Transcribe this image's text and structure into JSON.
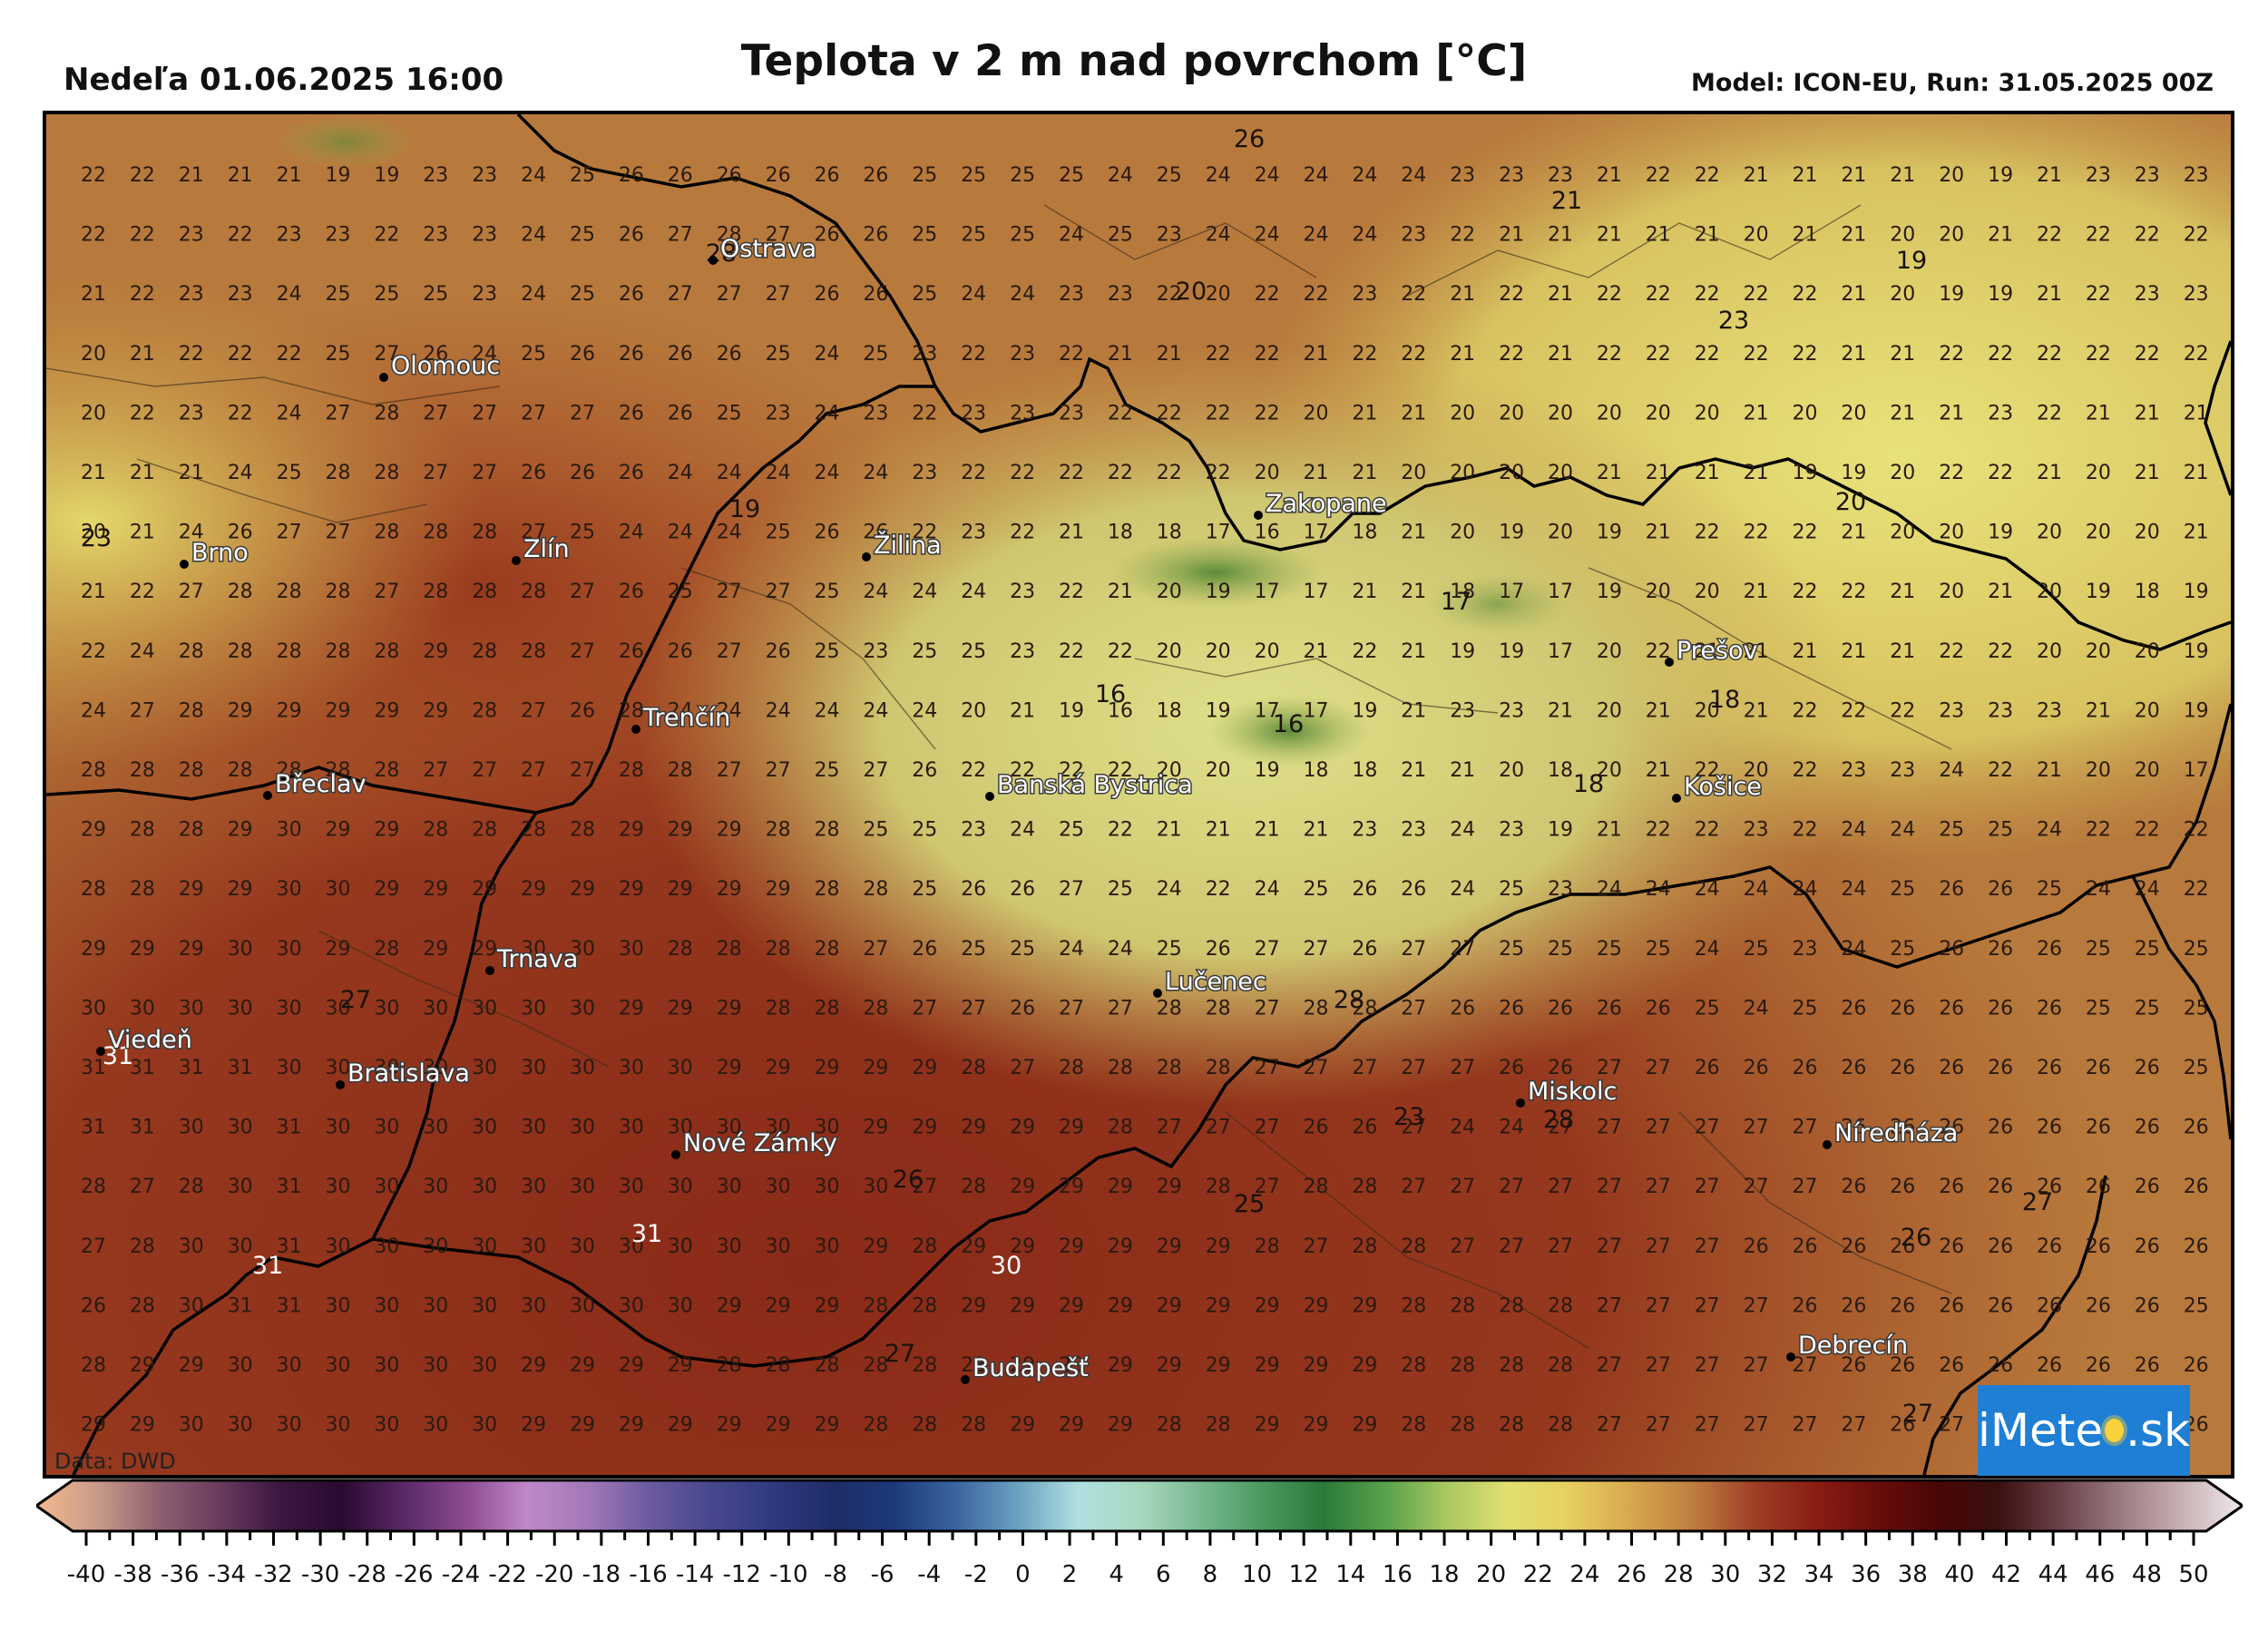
{
  "header": {
    "date": "Nedeľa 01.06.2025 16:00",
    "title": "Teplota v 2 m nad povrchom [°C]",
    "model": "Model: ICON-EU, Run: 31.05.2025 00Z"
  },
  "map": {
    "grid_cols": 45,
    "grid_rows": 22,
    "grid_values": [
      [
        22,
        22,
        21,
        21,
        21,
        19,
        19,
        23,
        23,
        24,
        25,
        26,
        26,
        26,
        26,
        26,
        26,
        25,
        25,
        25,
        25,
        24,
        25,
        24,
        24,
        24,
        24,
        24,
        23,
        23,
        23,
        21,
        22,
        22,
        21,
        21,
        21,
        21,
        20,
        19,
        21,
        23,
        23,
        23,
        23
      ],
      [
        22,
        22,
        23,
        22,
        23,
        23,
        22,
        23,
        23,
        24,
        25,
        26,
        27,
        28,
        27,
        26,
        26,
        25,
        25,
        25,
        24,
        25,
        23,
        24,
        24,
        24,
        24,
        23,
        22,
        21,
        21,
        21,
        21,
        21,
        20,
        21,
        21,
        20,
        20,
        21,
        22,
        22,
        22,
        22,
        22
      ],
      [
        21,
        22,
        23,
        23,
        24,
        25,
        25,
        25,
        23,
        24,
        25,
        26,
        27,
        27,
        27,
        26,
        26,
        25,
        24,
        24,
        23,
        23,
        22,
        20,
        22,
        22,
        23,
        22,
        21,
        22,
        21,
        22,
        22,
        22,
        22,
        22,
        21,
        20,
        19,
        19,
        21,
        22,
        23,
        23,
        22
      ],
      [
        20,
        21,
        22,
        22,
        22,
        25,
        27,
        26,
        24,
        25,
        26,
        26,
        26,
        26,
        25,
        24,
        25,
        23,
        22,
        23,
        22,
        21,
        21,
        22,
        22,
        21,
        22,
        22,
        21,
        22,
        21,
        22,
        22,
        22,
        22,
        22,
        21,
        21,
        22,
        22,
        22,
        22,
        22,
        22,
        22
      ],
      [
        20,
        22,
        23,
        22,
        24,
        27,
        28,
        27,
        27,
        27,
        27,
        26,
        26,
        25,
        23,
        24,
        23,
        22,
        23,
        23,
        23,
        22,
        22,
        22,
        22,
        20,
        21,
        21,
        20,
        20,
        20,
        20,
        20,
        20,
        21,
        20,
        20,
        21,
        21,
        23,
        22,
        21,
        21,
        21,
        21
      ],
      [
        21,
        21,
        21,
        24,
        25,
        28,
        28,
        27,
        27,
        26,
        26,
        26,
        24,
        24,
        24,
        24,
        24,
        23,
        22,
        22,
        22,
        22,
        22,
        22,
        20,
        21,
        21,
        20,
        20,
        20,
        20,
        21,
        21,
        21,
        21,
        19,
        19,
        20,
        22,
        22,
        21,
        20,
        21,
        21,
        21
      ],
      [
        20,
        21,
        24,
        26,
        27,
        27,
        28,
        28,
        28,
        27,
        25,
        24,
        24,
        24,
        25,
        26,
        26,
        22,
        23,
        22,
        21,
        18,
        18,
        17,
        16,
        17,
        18,
        21,
        20,
        19,
        20,
        19,
        21,
        22,
        22,
        22,
        21,
        20,
        20,
        19,
        20,
        20,
        20,
        21,
        20
      ],
      [
        21,
        22,
        27,
        28,
        28,
        28,
        27,
        28,
        28,
        28,
        27,
        26,
        25,
        27,
        27,
        25,
        24,
        24,
        24,
        23,
        22,
        21,
        20,
        19,
        17,
        17,
        21,
        21,
        18,
        17,
        17,
        19,
        20,
        20,
        21,
        22,
        22,
        21,
        20,
        21,
        20,
        19,
        18,
        19,
        20
      ],
      [
        22,
        24,
        28,
        28,
        28,
        28,
        28,
        29,
        28,
        28,
        27,
        26,
        26,
        27,
        26,
        25,
        23,
        25,
        25,
        23,
        22,
        22,
        20,
        20,
        20,
        21,
        22,
        21,
        19,
        19,
        17,
        20,
        22,
        21,
        21,
        21,
        21,
        21,
        22,
        22,
        20,
        20,
        20,
        19,
        19
      ],
      [
        24,
        27,
        28,
        29,
        29,
        29,
        29,
        29,
        28,
        27,
        26,
        28,
        24,
        24,
        24,
        24,
        24,
        24,
        20,
        21,
        19,
        16,
        18,
        19,
        17,
        17,
        19,
        21,
        23,
        23,
        21,
        20,
        21,
        20,
        21,
        22,
        22,
        22,
        23,
        23,
        23,
        21,
        20,
        19,
        19
      ],
      [
        28,
        28,
        28,
        28,
        28,
        28,
        28,
        27,
        27,
        27,
        27,
        28,
        28,
        27,
        27,
        25,
        27,
        26,
        22,
        22,
        22,
        22,
        20,
        20,
        19,
        18,
        18,
        21,
        21,
        20,
        18,
        20,
        21,
        22,
        20,
        22,
        23,
        23,
        24,
        22,
        21,
        20,
        20,
        17,
        17
      ],
      [
        29,
        28,
        28,
        29,
        30,
        29,
        29,
        28,
        28,
        28,
        28,
        29,
        29,
        29,
        28,
        28,
        25,
        25,
        23,
        24,
        25,
        22,
        21,
        21,
        21,
        21,
        23,
        23,
        24,
        23,
        19,
        21,
        22,
        22,
        23,
        22,
        24,
        24,
        25,
        25,
        24,
        22,
        22,
        22,
        21
      ],
      [
        28,
        28,
        29,
        29,
        30,
        30,
        29,
        29,
        29,
        29,
        29,
        29,
        29,
        29,
        29,
        28,
        28,
        25,
        26,
        26,
        27,
        25,
        24,
        22,
        24,
        25,
        26,
        26,
        24,
        25,
        23,
        24,
        24,
        24,
        24,
        24,
        24,
        25,
        26,
        26,
        25,
        24,
        24,
        22,
        21
      ],
      [
        29,
        29,
        29,
        30,
        30,
        29,
        28,
        29,
        29,
        30,
        30,
        30,
        28,
        28,
        28,
        28,
        27,
        26,
        25,
        25,
        24,
        24,
        25,
        26,
        27,
        27,
        26,
        27,
        27,
        25,
        25,
        25,
        25,
        24,
        25,
        23,
        24,
        25,
        26,
        26,
        26,
        25,
        25,
        25,
        22
      ],
      [
        30,
        30,
        30,
        30,
        30,
        30,
        30,
        30,
        30,
        30,
        30,
        29,
        29,
        29,
        28,
        28,
        28,
        27,
        27,
        26,
        27,
        27,
        28,
        28,
        27,
        28,
        28,
        27,
        26,
        26,
        26,
        26,
        26,
        25,
        24,
        25,
        26,
        26,
        26,
        26,
        26,
        25,
        25,
        25,
        25
      ],
      [
        31,
        31,
        31,
        31,
        30,
        30,
        30,
        30,
        30,
        30,
        30,
        30,
        30,
        29,
        29,
        29,
        29,
        29,
        28,
        27,
        28,
        28,
        28,
        28,
        27,
        27,
        27,
        27,
        27,
        26,
        26,
        27,
        27,
        26,
        26,
        26,
        26,
        26,
        26,
        26,
        26,
        26,
        26,
        25,
        25
      ],
      [
        31,
        31,
        30,
        30,
        31,
        30,
        30,
        30,
        30,
        30,
        30,
        30,
        30,
        30,
        30,
        30,
        29,
        29,
        29,
        29,
        29,
        28,
        27,
        27,
        27,
        26,
        26,
        27,
        24,
        24,
        27,
        27,
        27,
        27,
        27,
        27,
        26,
        26,
        26,
        26,
        26,
        26,
        26,
        26,
        25
      ],
      [
        28,
        27,
        28,
        30,
        31,
        30,
        30,
        30,
        30,
        30,
        30,
        30,
        30,
        30,
        30,
        30,
        30,
        27,
        28,
        29,
        29,
        29,
        29,
        28,
        27,
        28,
        28,
        27,
        27,
        27,
        27,
        27,
        27,
        27,
        27,
        27,
        26,
        26,
        26,
        26,
        26,
        26,
        26,
        26,
        25
      ],
      [
        27,
        28,
        30,
        30,
        31,
        30,
        30,
        30,
        30,
        30,
        30,
        30,
        30,
        30,
        30,
        30,
        29,
        28,
        29,
        29,
        29,
        29,
        29,
        29,
        28,
        27,
        28,
        28,
        27,
        27,
        27,
        27,
        27,
        27,
        26,
        26,
        26,
        26,
        26,
        26,
        26,
        26,
        26,
        26,
        26
      ],
      [
        26,
        28,
        30,
        31,
        31,
        30,
        30,
        30,
        30,
        30,
        30,
        30,
        30,
        29,
        29,
        29,
        28,
        28,
        29,
        29,
        29,
        29,
        29,
        29,
        29,
        29,
        29,
        28,
        28,
        28,
        28,
        27,
        27,
        27,
        27,
        26,
        26,
        26,
        26,
        26,
        26,
        26,
        26,
        25,
        25
      ],
      [
        28,
        29,
        29,
        30,
        30,
        30,
        30,
        30,
        30,
        29,
        29,
        29,
        29,
        28,
        28,
        28,
        28,
        28,
        28,
        29,
        29,
        29,
        29,
        29,
        29,
        29,
        29,
        28,
        28,
        28,
        28,
        27,
        27,
        27,
        27,
        27,
        26,
        26,
        26,
        26,
        26,
        26,
        26,
        26,
        25
      ],
      [
        29,
        29,
        30,
        30,
        30,
        30,
        30,
        30,
        30,
        29,
        29,
        29,
        29,
        29,
        29,
        29,
        28,
        28,
        28,
        29,
        29,
        29,
        28,
        28,
        29,
        29,
        29,
        28,
        28,
        28,
        28,
        27,
        27,
        27,
        27,
        27,
        27,
        26,
        27,
        27,
        26,
        26,
        26,
        26,
        25
      ]
    ],
    "highlight_values": [
      {
        "v": "26",
        "light": false
      },
      {
        "v": "21",
        "light": false
      },
      {
        "v": "19",
        "light": false
      },
      {
        "v": "20",
        "light": false
      },
      {
        "v": "23",
        "light": false
      },
      {
        "v": "20",
        "light": false
      },
      {
        "v": "23",
        "light": false
      },
      {
        "v": "19",
        "light": false
      },
      {
        "v": "17",
        "light": false
      },
      {
        "v": "16",
        "light": false
      },
      {
        "v": "16",
        "light": false
      },
      {
        "v": "18",
        "light": false
      },
      {
        "v": "18",
        "light": false
      },
      {
        "v": "25",
        "light": false
      },
      {
        "v": "28",
        "light": false
      },
      {
        "v": "23",
        "light": false
      },
      {
        "v": "28",
        "light": false
      },
      {
        "v": "27",
        "light": false
      },
      {
        "v": "26",
        "light": false
      },
      {
        "v": "26",
        "light": false
      },
      {
        "v": "25",
        "light": false
      },
      {
        "v": "27",
        "light": false
      },
      {
        "v": "27",
        "light": false
      },
      {
        "v": "28",
        "light": false
      },
      {
        "v": "31",
        "light": true
      },
      {
        "v": "31",
        "light": true
      },
      {
        "v": "31",
        "light": true
      },
      {
        "v": "30",
        "light": true
      },
      {
        "v": "27",
        "light": false
      }
    ],
    "cities": [
      "Ostrava",
      "Olomouc",
      "Brno",
      "Zlín",
      "Žilina",
      "Zakopane",
      "Prešov",
      "Trenčín",
      "Břeclav",
      "Banská Bystrica",
      "Košice",
      "Trnava",
      "Lučenec",
      "Viedeň",
      "Bratislava",
      "Miskolc",
      "Nové Zámky",
      "Níreďháza",
      "Debrecín",
      "Budapešť"
    ]
  },
  "colorbar": {
    "ticks": [
      "-40",
      "-38",
      "-36",
      "-34",
      "-32",
      "-30",
      "-28",
      "-26",
      "-24",
      "-22",
      "-20",
      "-18",
      "-16",
      "-14",
      "-12",
      "-10",
      "-8",
      "-6",
      "-4",
      "-2",
      "0",
      "2",
      "4",
      "6",
      "8",
      "10",
      "12",
      "14",
      "16",
      "18",
      "20",
      "22",
      "24",
      "26",
      "28",
      "30",
      "32",
      "34",
      "36",
      "38",
      "40",
      "42",
      "44",
      "46",
      "48",
      "50"
    ],
    "stops": [
      "#f2b98e",
      "#c99a8a",
      "#8f6070",
      "#6a3a5e",
      "#3b1640",
      "#2a0a30",
      "#5a2868",
      "#8c4a90",
      "#c088c8",
      "#a278b8",
      "#6c5aa0",
      "#48478e",
      "#303a80",
      "#1e2c68",
      "#1c3a7a",
      "#3a64a0",
      "#6aa0c0",
      "#b0e0e0",
      "#a8d8c0",
      "#78b890",
      "#4a9a60",
      "#2a7a3a",
      "#58a04a",
      "#a8c860",
      "#e0e070",
      "#e8d060",
      "#d8a850",
      "#c08040",
      "#a04028",
      "#8a1e14",
      "#6a0e0a",
      "#4a0606",
      "#3a1010",
      "#6a4048",
      "#9a7a80",
      "#c8b0b4",
      "#f0e8ea"
    ]
  },
  "credit": "Data: DWD",
  "logo": {
    "left": "iMete",
    "right": ".sk"
  }
}
